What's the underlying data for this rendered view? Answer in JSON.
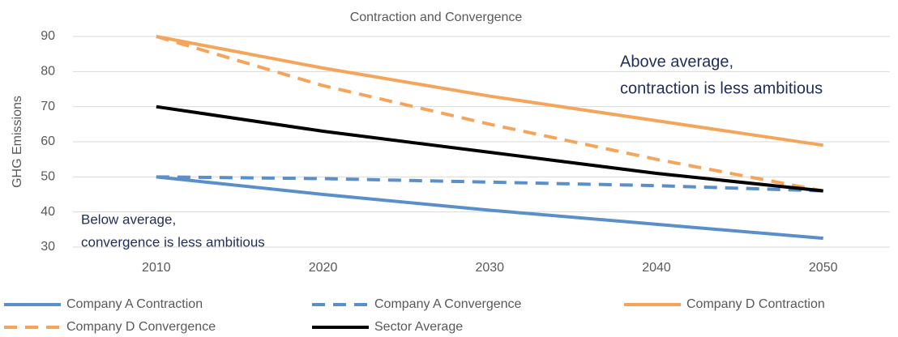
{
  "chart_data": {
    "type": "line",
    "title": "Contraction and Convergence",
    "y_label": "GHG Emissions",
    "x": [
      2010,
      2020,
      2030,
      2040,
      2050
    ],
    "xlim": [
      2005,
      2054
    ],
    "xticks": [
      2010,
      2020,
      2030,
      2040,
      2050
    ],
    "ylim": [
      30,
      90
    ],
    "yticks": [
      30,
      40,
      50,
      60,
      70,
      80,
      90
    ],
    "grid": true,
    "legend": "bottom",
    "series": [
      {
        "name": "Company A Contraction",
        "color": "#5b8fc9",
        "dashed": false,
        "values": [
          50,
          45,
          40.5,
          36.5,
          32.5
        ]
      },
      {
        "name": "Company A Convergence",
        "color": "#5b8fc9",
        "dashed": true,
        "values": [
          50,
          49.5,
          48.5,
          47.5,
          46
        ]
      },
      {
        "name": "Company D Contraction",
        "color": "#f5a55a",
        "dashed": false,
        "values": [
          90,
          81,
          73,
          66,
          59
        ]
      },
      {
        "name": "Company D Convergence",
        "color": "#f5a55a",
        "dashed": true,
        "values": [
          90,
          76,
          65,
          55,
          46
        ]
      },
      {
        "name": "Sector Average",
        "color": "#000000",
        "dashed": false,
        "values": [
          70,
          63,
          57,
          51,
          46
        ]
      }
    ],
    "annotations": [
      {
        "lines": [
          "Above average,",
          "contraction is less ambitious"
        ]
      },
      {
        "lines": [
          "Below average,",
          "convergence is less ambitious"
        ]
      }
    ]
  }
}
